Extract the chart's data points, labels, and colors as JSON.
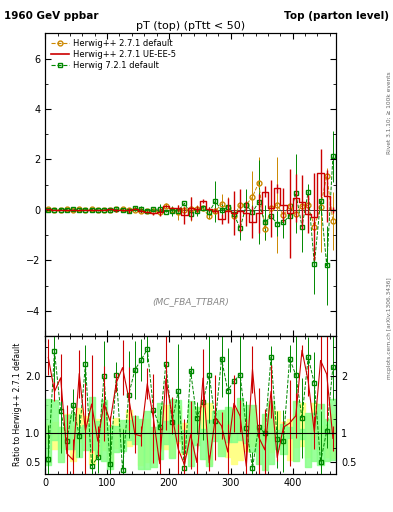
{
  "title_left": "1960 GeV ppbar",
  "title_right": "Top (parton level)",
  "plot_title": "pT (top) (pTtt < 50)",
  "watermark": "(MC_FBA_TTBAR)",
  "right_label": "Rivet 3.1.10; ≥ 100k events",
  "arxiv_label": "mcplots.cern.ch [arXiv:1306.3436]",
  "ylabel_ratio": "Ratio to Herwig++ 2.7.1 default",
  "legend": [
    {
      "label": "Herwig++ 2.7.1 default",
      "color": "#cc8800",
      "marker": "o",
      "linestyle": "--"
    },
    {
      "label": "Herwig++ 2.7.1 UE-EE-5",
      "color": "#cc0000",
      "marker": null,
      "linestyle": "-"
    },
    {
      "label": "Herwig 7.2.1 default",
      "color": "#008800",
      "marker": "s",
      "linestyle": "--"
    }
  ],
  "main_ylim": [
    -5.0,
    7.0
  ],
  "main_yticks": [
    -4,
    -2,
    0,
    2,
    4,
    6
  ],
  "ratio_ylim": [
    0.3,
    2.7
  ],
  "ratio_yticks": [
    0.5,
    1,
    2
  ],
  "xlim": [
    0,
    470
  ],
  "xticks": [
    0,
    100,
    200,
    300,
    400
  ],
  "n_bins": 47,
  "bin_width": 10,
  "yellow_band_color": "#ffff88",
  "green_band_color": "#88ff88",
  "figsize": [
    3.93,
    5.12
  ],
  "dpi": 100
}
